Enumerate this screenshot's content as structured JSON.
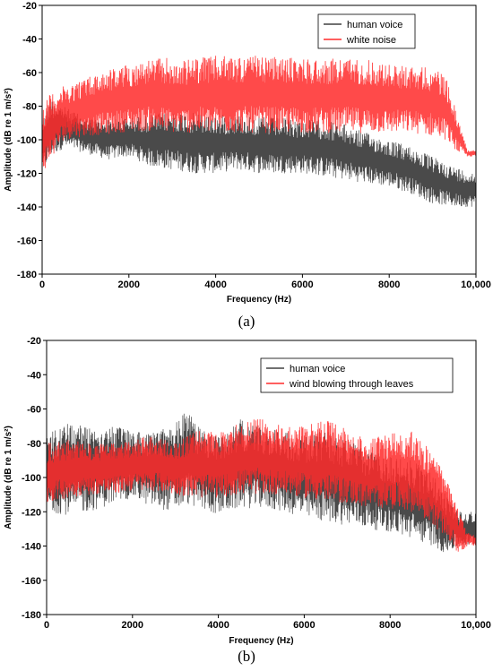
{
  "chart_data": [
    {
      "type": "line",
      "panel_label": "(a)",
      "xlabel": "Frequency (Hz)",
      "ylabel": "Amplitude (dB re 1 m/s²)",
      "xlim": [
        0,
        10000
      ],
      "ylim": [
        -180,
        -20
      ],
      "xticks": [
        0,
        2000,
        4000,
        6000,
        8000,
        10000
      ],
      "xtick_labels": [
        "0",
        "2000",
        "4000",
        "6000",
        "8000",
        "10,000"
      ],
      "yticks": [
        -20,
        -40,
        -60,
        -80,
        -100,
        -120,
        -140,
        -160,
        -180
      ],
      "grid": false,
      "legend_position": "top-right",
      "series": [
        {
          "name": "human voice",
          "color": "#404040",
          "x": [
            0,
            200,
            500,
            1000,
            1500,
            2000,
            2500,
            3000,
            3500,
            4000,
            4500,
            5000,
            5500,
            6000,
            6500,
            7000,
            7500,
            8000,
            8500,
            9000,
            9500,
            10000
          ],
          "upper": [
            -88,
            -75,
            -80,
            -87,
            -88,
            -87,
            -85,
            -83,
            -84,
            -85,
            -85,
            -86,
            -87,
            -88,
            -88,
            -91,
            -96,
            -100,
            -104,
            -110,
            -116,
            -120
          ],
          "lower": [
            -120,
            -110,
            -105,
            -108,
            -112,
            -110,
            -116,
            -118,
            -120,
            -120,
            -118,
            -120,
            -120,
            -120,
            -122,
            -124,
            -126,
            -128,
            -132,
            -138,
            -140,
            -140
          ]
        },
        {
          "name": "white noise",
          "color": "#ff2a2a",
          "x": [
            0,
            200,
            500,
            1000,
            1500,
            2000,
            2500,
            2900,
            3000,
            3500,
            4000,
            4500,
            5000,
            5500,
            6000,
            6500,
            7000,
            7500,
            8000,
            8500,
            9000,
            9300,
            9600,
            9800,
            10000
          ],
          "upper": [
            -80,
            -72,
            -68,
            -63,
            -58,
            -55,
            -52,
            -51,
            -55,
            -51,
            -50,
            -50,
            -50,
            -51,
            -51,
            -52,
            -51,
            -52,
            -55,
            -56,
            -57,
            -62,
            -88,
            -106,
            -106
          ],
          "lower": [
            -120,
            -112,
            -100,
            -98,
            -97,
            -95,
            -95,
            -96,
            -96,
            -96,
            -96,
            -96,
            -96,
            -96,
            -96,
            -96,
            -96,
            -96,
            -96,
            -96,
            -98,
            -100,
            -108,
            -110,
            -110
          ]
        }
      ]
    },
    {
      "type": "line",
      "panel_label": "(b)",
      "xlabel": "Frequency (Hz)",
      "ylabel": "Amplitude (dB re 1 m/s²)",
      "xlim": [
        0,
        10000
      ],
      "ylim": [
        -180,
        -20
      ],
      "xticks": [
        0,
        2000,
        4000,
        6000,
        8000,
        10000
      ],
      "xtick_labels": [
        "0",
        "2000",
        "4000",
        "6000",
        "8000",
        "10,000"
      ],
      "yticks": [
        -20,
        -40,
        -60,
        -80,
        -100,
        -120,
        -140,
        -160,
        -180
      ],
      "grid": false,
      "legend_position": "top-right",
      "series": [
        {
          "name": "human voice",
          "color": "#404040",
          "x": [
            0,
            500,
            1000,
            1500,
            2000,
            2500,
            3000,
            3300,
            3500,
            4000,
            4500,
            5000,
            5500,
            6000,
            6500,
            7000,
            7500,
            8000,
            8500,
            9000,
            9300,
            9600,
            10000
          ],
          "upper": [
            -75,
            -68,
            -68,
            -70,
            -72,
            -73,
            -68,
            -58,
            -70,
            -75,
            -66,
            -70,
            -72,
            -76,
            -72,
            -78,
            -84,
            -88,
            -90,
            -98,
            -110,
            -120,
            -120
          ],
          "lower": [
            -120,
            -122,
            -120,
            -116,
            -112,
            -118,
            -120,
            -116,
            -118,
            -122,
            -118,
            -118,
            -120,
            -124,
            -126,
            -128,
            -130,
            -132,
            -136,
            -140,
            -145,
            -140,
            -140
          ]
        },
        {
          "name": "wind blowing through leaves",
          "color": "#ff2a2a",
          "x": [
            0,
            500,
            1000,
            1500,
            2000,
            2500,
            3000,
            3500,
            4000,
            4500,
            5000,
            5500,
            6000,
            6500,
            7000,
            7500,
            8000,
            8500,
            9000,
            9300,
            9600,
            9800,
            10000
          ],
          "upper": [
            -80,
            -78,
            -80,
            -80,
            -78,
            -75,
            -80,
            -72,
            -74,
            -68,
            -65,
            -70,
            -70,
            -66,
            -72,
            -78,
            -74,
            -72,
            -86,
            -100,
            -120,
            -132,
            -134
          ],
          "lower": [
            -115,
            -112,
            -110,
            -110,
            -108,
            -108,
            -110,
            -112,
            -112,
            -110,
            -110,
            -110,
            -112,
            -115,
            -115,
            -118,
            -118,
            -120,
            -128,
            -135,
            -145,
            -140,
            -140
          ]
        }
      ]
    }
  ]
}
